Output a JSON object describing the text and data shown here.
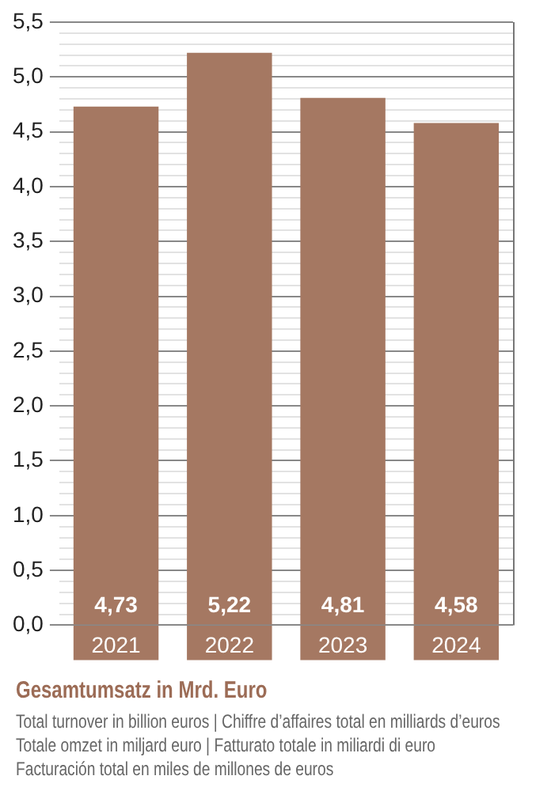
{
  "chart_data": {
    "type": "bar",
    "title": "Gesamtumsatz in Mrd. Euro",
    "annotations": [
      "Total turnover in billion euros | Chiffre d’affaires total en milliards d’euros",
      "Totale omzet in miljard euro | Fatturato totale in miliardi di euro",
      "Facturación total en miles de millones de euros"
    ],
    "categories": [
      "2021",
      "2022",
      "2023",
      "2024"
    ],
    "values": [
      4.73,
      5.22,
      4.81,
      4.58
    ],
    "value_labels": [
      "4,73",
      "5,22",
      "4,81",
      "4,58"
    ],
    "color": "#a57862",
    "ylim": [
      0,
      5.5
    ],
    "yticks": [
      {
        "value": 0,
        "label": "0,0"
      },
      {
        "value": 0.1,
        "label": null
      },
      {
        "value": 0.2,
        "label": null
      },
      {
        "value": 0.3,
        "label": null
      },
      {
        "value": 0.4,
        "label": null
      },
      {
        "value": 0.5,
        "label": "0,5"
      },
      {
        "value": 0.6,
        "label": null
      },
      {
        "value": 0.7,
        "label": null
      },
      {
        "value": 0.8,
        "label": null
      },
      {
        "value": 0.9,
        "label": null
      },
      {
        "value": 1,
        "label": "1,0"
      },
      {
        "value": 1.1,
        "label": null
      },
      {
        "value": 1.2,
        "label": null
      },
      {
        "value": 1.3,
        "label": null
      },
      {
        "value": 1.4,
        "label": null
      },
      {
        "value": 1.5,
        "label": "1,5"
      },
      {
        "value": 1.6,
        "label": null
      },
      {
        "value": 1.7,
        "label": null
      },
      {
        "value": 1.8,
        "label": null
      },
      {
        "value": 1.9,
        "label": null
      },
      {
        "value": 2,
        "label": "2,0"
      },
      {
        "value": 2.1,
        "label": null
      },
      {
        "value": 2.2,
        "label": null
      },
      {
        "value": 2.3,
        "label": null
      },
      {
        "value": 2.4,
        "label": null
      },
      {
        "value": 2.5,
        "label": "2,5"
      },
      {
        "value": 2.6,
        "label": null
      },
      {
        "value": 2.7,
        "label": null
      },
      {
        "value": 2.8,
        "label": null
      },
      {
        "value": 2.9,
        "label": null
      },
      {
        "value": 3,
        "label": "3,0"
      },
      {
        "value": 3.1,
        "label": null
      },
      {
        "value": 3.2,
        "label": null
      },
      {
        "value": 3.3,
        "label": null
      },
      {
        "value": 3.4,
        "label": null
      },
      {
        "value": 3.5,
        "label": "3,5"
      },
      {
        "value": 3.6,
        "label": null
      },
      {
        "value": 3.7,
        "label": null
      },
      {
        "value": 3.8,
        "label": null
      },
      {
        "value": 3.9,
        "label": null
      },
      {
        "value": 4,
        "label": "4,0"
      },
      {
        "value": 4.1,
        "label": null
      },
      {
        "value": 4.2,
        "label": null
      },
      {
        "value": 4.3,
        "label": null
      },
      {
        "value": 4.4,
        "label": null
      },
      {
        "value": 4.5,
        "label": "4,5"
      },
      {
        "value": 4.6,
        "label": null
      },
      {
        "value": 4.7,
        "label": null
      },
      {
        "value": 4.8,
        "label": null
      },
      {
        "value": 4.9,
        "label": null
      },
      {
        "value": 5,
        "label": "5,0"
      },
      {
        "value": 5.1,
        "label": null
      },
      {
        "value": 5.2,
        "label": null
      },
      {
        "value": 5.3,
        "label": null
      },
      {
        "value": 5.4,
        "label": null
      },
      {
        "value": 5.5,
        "label": "5,5"
      }
    ],
    "grid": "y",
    "legend": false
  }
}
